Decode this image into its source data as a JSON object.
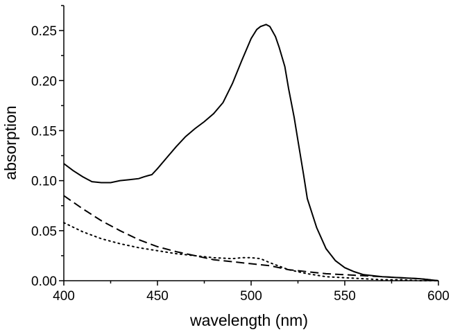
{
  "chart_data": {
    "type": "line",
    "title": "",
    "xlabel": "wavelength (nm)",
    "ylabel": "absorption",
    "xlim": [
      400,
      600
    ],
    "ylim": [
      0.0,
      0.275
    ],
    "x_ticks": [
      400,
      450,
      500,
      550,
      600
    ],
    "x_tick_labels": [
      "400",
      "450",
      "500",
      "550",
      "600"
    ],
    "y_ticks": [
      0.0,
      0.05,
      0.1,
      0.15,
      0.2,
      0.25
    ],
    "y_tick_labels": [
      "0.00",
      "0.05",
      "0.10",
      "0.15",
      "0.20",
      "0.25"
    ],
    "grid": false,
    "legend": "none",
    "series": [
      {
        "style": "solid",
        "x": [
          400,
          405,
          410,
          415,
          420,
          425,
          430,
          435,
          440,
          443,
          445,
          447,
          450,
          455,
          460,
          465,
          470,
          475,
          480,
          485,
          490,
          495,
          500,
          503,
          505,
          508,
          510,
          513,
          515,
          518,
          520,
          523,
          525,
          528,
          530,
          535,
          540,
          545,
          550,
          555,
          560,
          570,
          580,
          590,
          600
        ],
        "y": [
          0.117,
          0.11,
          0.104,
          0.099,
          0.098,
          0.098,
          0.1,
          0.101,
          0.102,
          0.104,
          0.105,
          0.106,
          0.112,
          0.123,
          0.134,
          0.144,
          0.152,
          0.159,
          0.167,
          0.178,
          0.197,
          0.22,
          0.242,
          0.251,
          0.254,
          0.256,
          0.254,
          0.244,
          0.233,
          0.214,
          0.192,
          0.163,
          0.14,
          0.106,
          0.082,
          0.053,
          0.032,
          0.02,
          0.013,
          0.009,
          0.006,
          0.004,
          0.003,
          0.002,
          0.0
        ]
      },
      {
        "style": "dashed",
        "x": [
          400,
          410,
          420,
          430,
          440,
          450,
          460,
          470,
          480,
          490,
          500,
          510,
          520,
          530,
          540,
          550,
          560,
          570,
          580,
          590,
          600
        ],
        "y": [
          0.085,
          0.072,
          0.06,
          0.05,
          0.041,
          0.034,
          0.029,
          0.025,
          0.021,
          0.019,
          0.017,
          0.015,
          0.011,
          0.009,
          0.007,
          0.006,
          0.005,
          0.004,
          0.003,
          0.002,
          0.0
        ]
      },
      {
        "style": "dotted",
        "x": [
          400,
          410,
          420,
          430,
          440,
          450,
          460,
          470,
          480,
          490,
          495,
          500,
          505,
          510,
          520,
          530,
          540,
          550,
          560,
          570,
          580,
          590,
          600
        ],
        "y": [
          0.058,
          0.049,
          0.042,
          0.037,
          0.033,
          0.03,
          0.027,
          0.025,
          0.023,
          0.022,
          0.023,
          0.023,
          0.022,
          0.018,
          0.011,
          0.007,
          0.004,
          0.003,
          0.002,
          0.001,
          0.001,
          0.0,
          0.0
        ]
      }
    ]
  }
}
